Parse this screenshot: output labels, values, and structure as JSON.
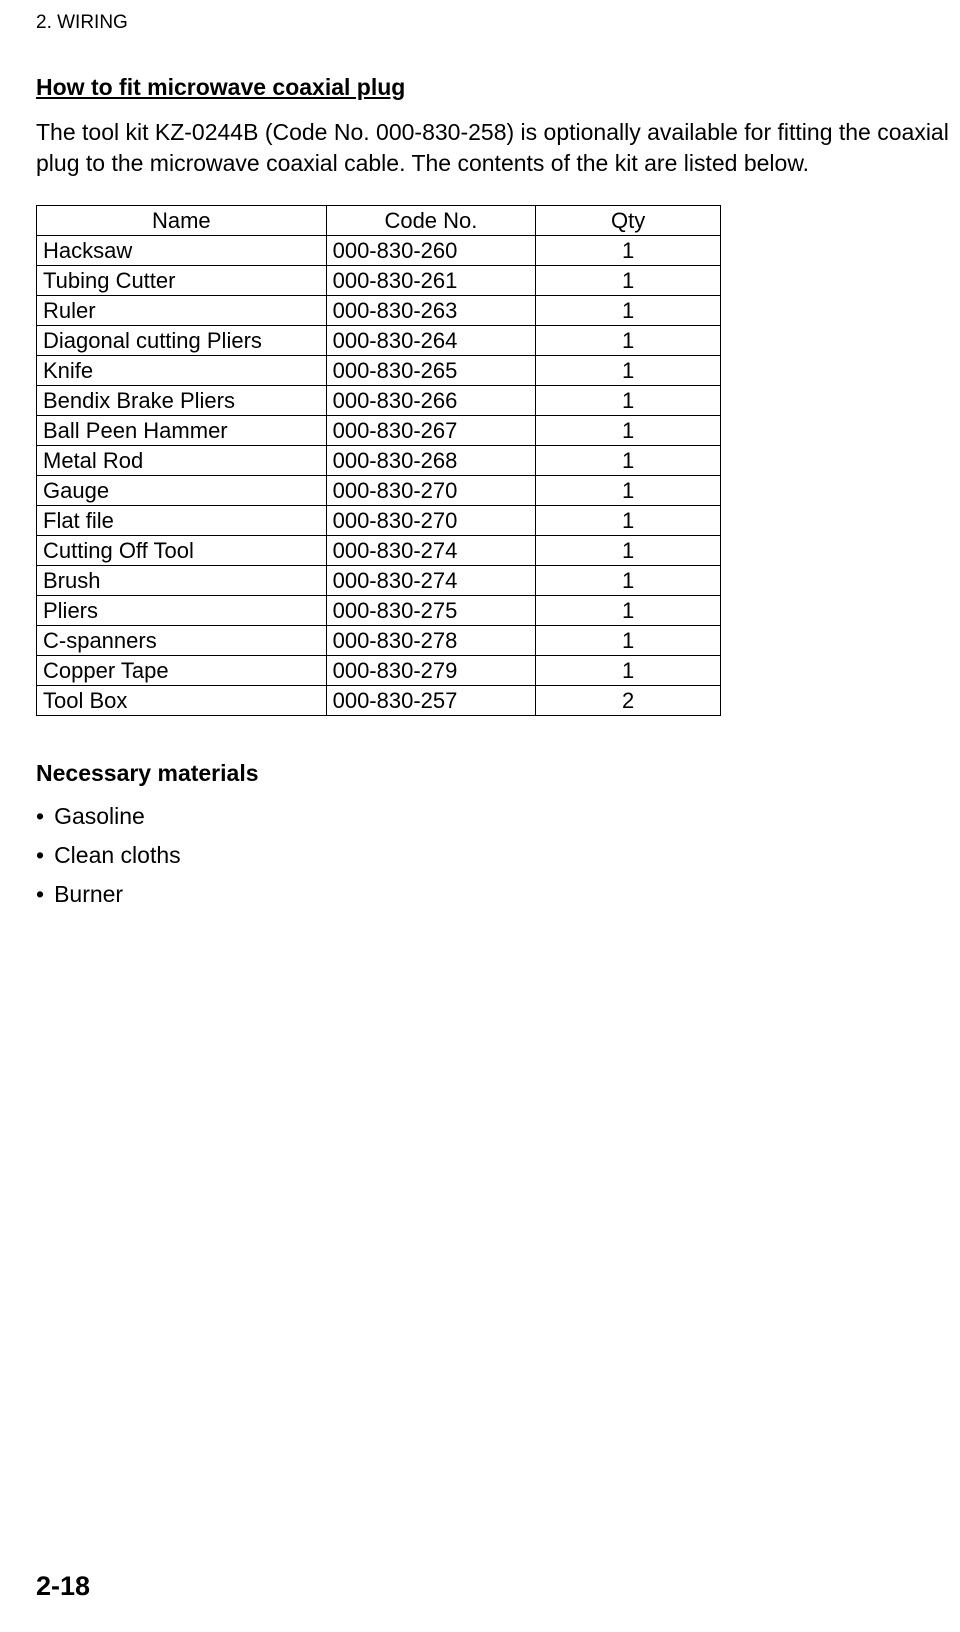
{
  "header": "2. WIRING",
  "subtitle": "How to fit microwave coaxial plug",
  "intro": "The tool kit KZ-0244B (Code No. 000-830-258) is optionally available for fitting the coaxial plug to the microwave coaxial cable. The contents of the kit are listed below.",
  "table": {
    "columns": [
      "Name",
      "Code No.",
      "Qty"
    ],
    "rows": [
      [
        "Hacksaw",
        "000-830-260",
        "1"
      ],
      [
        "Tubing Cutter",
        "000-830-261",
        "1"
      ],
      [
        "Ruler",
        "000-830-263",
        "1"
      ],
      [
        "Diagonal cutting Pliers",
        "000-830-264",
        "1"
      ],
      [
        "Knife",
        "000-830-265",
        "1"
      ],
      [
        "Bendix Brake Pliers",
        "000-830-266",
        "1"
      ],
      [
        "Ball Peen Hammer",
        "000-830-267",
        "1"
      ],
      [
        "Metal Rod",
        "000-830-268",
        "1"
      ],
      [
        "Gauge",
        "000-830-270",
        "1"
      ],
      [
        "Flat file",
        "000-830-270",
        "1"
      ],
      [
        "Cutting Off Tool",
        "000-830-274",
        "1"
      ],
      [
        "Brush",
        "000-830-274",
        "1"
      ],
      [
        "Pliers",
        "000-830-275",
        "1"
      ],
      [
        "C-spanners",
        "000-830-278",
        "1"
      ],
      [
        "Copper Tape",
        "000-830-279",
        "1"
      ],
      [
        "Tool Box",
        "000-830-257",
        "2"
      ]
    ]
  },
  "materials": {
    "title": "Necessary materials",
    "items": [
      "Gasoline",
      "Clean cloths",
      "Burner"
    ]
  },
  "page_number": "2-18"
}
